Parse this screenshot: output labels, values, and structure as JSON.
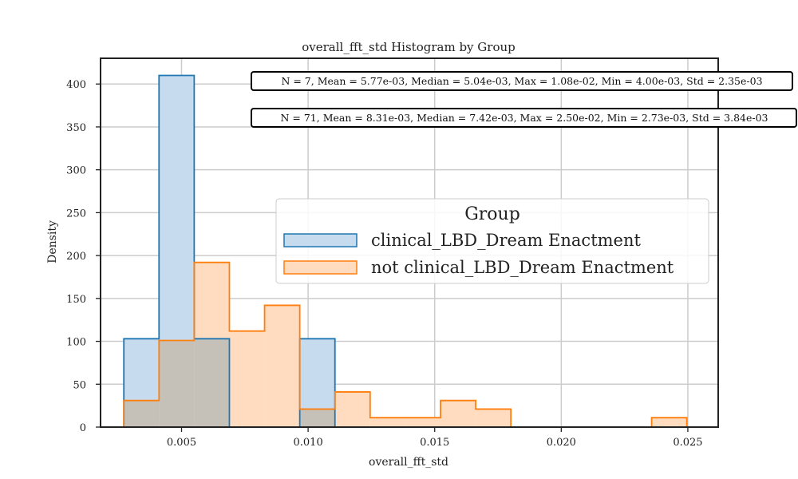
{
  "chart_data": {
    "type": "histogram",
    "title": "overall_fft_std Histogram by Group",
    "xlabel": "overall_fft_std",
    "ylabel": "Density",
    "xlim": [
      0.0018,
      0.0262
    ],
    "ylim": [
      0,
      430
    ],
    "xticks": [
      0.005,
      0.01,
      0.015,
      0.02,
      0.025
    ],
    "xtick_labels": [
      "0.005",
      "0.010",
      "0.015",
      "0.020",
      "0.025"
    ],
    "yticks": [
      0,
      50,
      100,
      150,
      200,
      250,
      300,
      350,
      400
    ],
    "ytick_labels": [
      "0",
      "50",
      "100",
      "150",
      "200",
      "250",
      "300",
      "350",
      "400"
    ],
    "grid": true,
    "legend": {
      "title": "Group",
      "placement": "center-right",
      "entries": [
        "clinical_LBD_Dream Enactment",
        "not clinical_LBD_Dream Enactment"
      ]
    },
    "stats_annotations": [
      "N = 7, Mean = 5.77e-03, Median = 5.04e-03, Max = 1.08e-02, Min = 4.00e-03, Std = 2.35e-03",
      "N = 71, Mean = 8.31e-03, Median = 7.42e-03, Max = 2.50e-02, Min = 2.73e-03, Std = 3.84e-03"
    ],
    "series": [
      {
        "name": "clinical_LBD_Dream Enactment",
        "color": "#1f77b4",
        "fill": "#c6dbed",
        "bins": [
          {
            "x0": 0.00272,
            "x1": 0.00411,
            "value": 103
          },
          {
            "x0": 0.00411,
            "x1": 0.0055,
            "value": 410
          },
          {
            "x0": 0.0055,
            "x1": 0.00689,
            "value": 103
          },
          {
            "x0": 0.00689,
            "x1": 0.00828,
            "value": 0
          },
          {
            "x0": 0.00828,
            "x1": 0.00967,
            "value": 0
          },
          {
            "x0": 0.00967,
            "x1": 0.01106,
            "value": 103
          }
        ]
      },
      {
        "name": "not clinical_LBD_Dream Enactment",
        "color": "#ff7f0e",
        "fill": "#ffdcc0",
        "bins": [
          {
            "x0": 0.00272,
            "x1": 0.00411,
            "value": 31
          },
          {
            "x0": 0.00411,
            "x1": 0.0055,
            "value": 101
          },
          {
            "x0": 0.0055,
            "x1": 0.00689,
            "value": 192
          },
          {
            "x0": 0.00689,
            "x1": 0.00828,
            "value": 112
          },
          {
            "x0": 0.00828,
            "x1": 0.00967,
            "value": 142
          },
          {
            "x0": 0.00967,
            "x1": 0.01106,
            "value": 21
          },
          {
            "x0": 0.01106,
            "x1": 0.01245,
            "value": 41
          },
          {
            "x0": 0.01245,
            "x1": 0.01384,
            "value": 11
          },
          {
            "x0": 0.01384,
            "x1": 0.01523,
            "value": 11
          },
          {
            "x0": 0.01523,
            "x1": 0.01662,
            "value": 31
          },
          {
            "x0": 0.01662,
            "x1": 0.01801,
            "value": 21
          },
          {
            "x0": 0.01801,
            "x1": 0.0194,
            "value": 0
          },
          {
            "x0": 0.0194,
            "x1": 0.02079,
            "value": 0
          },
          {
            "x0": 0.02079,
            "x1": 0.02218,
            "value": 0
          },
          {
            "x0": 0.02218,
            "x1": 0.02357,
            "value": 0
          },
          {
            "x0": 0.02357,
            "x1": 0.02496,
            "value": 11
          }
        ]
      }
    ],
    "overlap_color": "#c5c1b8"
  }
}
